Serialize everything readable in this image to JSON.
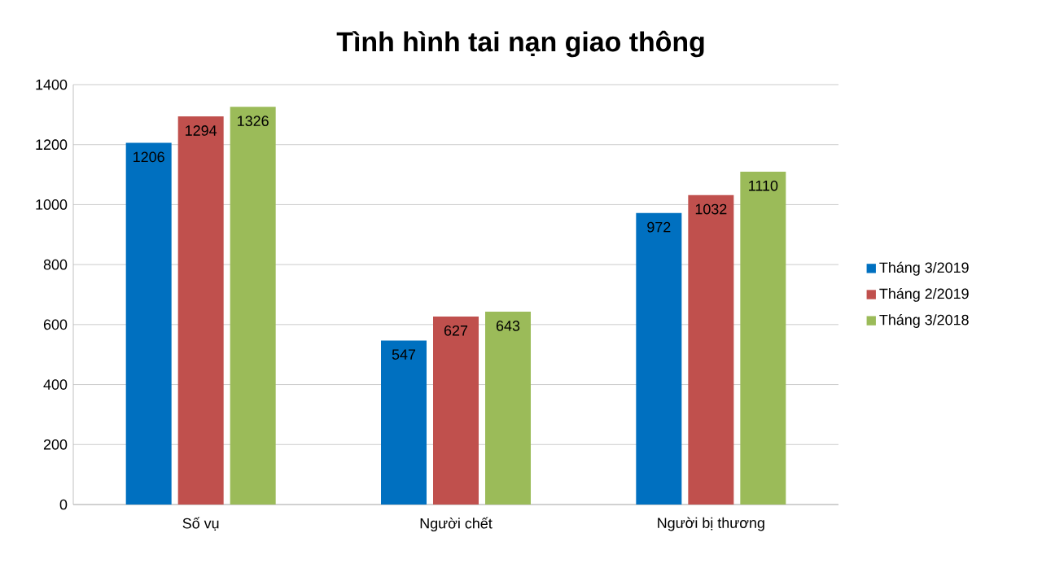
{
  "chart_data": {
    "type": "bar",
    "title": "Tình hình tai nạn giao thông",
    "categories": [
      "Số vụ",
      "Người chết",
      "Người bị thương"
    ],
    "series": [
      {
        "name": "Tháng 3/2019",
        "color": "#0070c0",
        "values": [
          1206,
          547,
          972
        ]
      },
      {
        "name": "Tháng 2/2019",
        "color": "#c0504d",
        "values": [
          1294,
          627,
          1032
        ]
      },
      {
        "name": "Tháng 3/2018",
        "color": "#9bbb59",
        "values": [
          1326,
          643,
          1110
        ]
      }
    ],
    "ylim": [
      0,
      1400
    ],
    "yticks": [
      0,
      200,
      400,
      600,
      800,
      1000,
      1200,
      1400
    ],
    "grid": "y",
    "legend": "right",
    "data_labels": true
  }
}
